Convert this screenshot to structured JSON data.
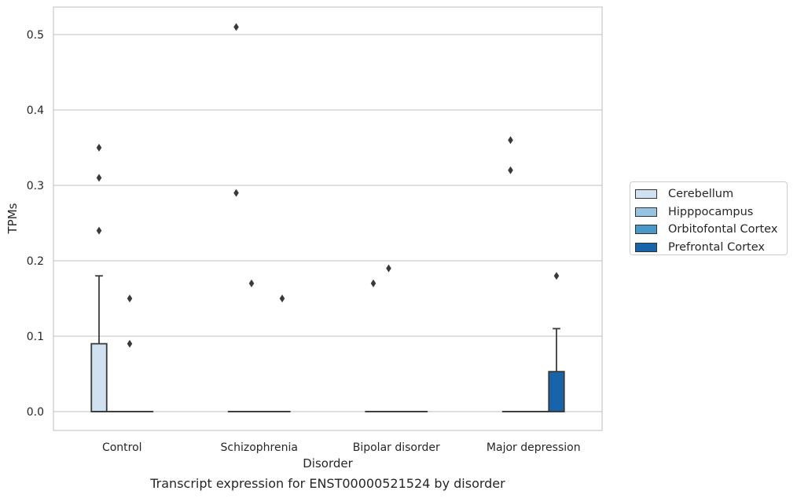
{
  "chart_data": {
    "type": "box",
    "caption": "Transcript expression for ENST00000521524 by disorder",
    "xlabel": "Disorder",
    "ylabel": "TPMs",
    "ylim": [
      -0.025,
      0.537
    ],
    "yticks": [
      0.0,
      0.1,
      0.2,
      0.3,
      0.4,
      0.5
    ],
    "ytick_labels": [
      "0.0",
      "0.1",
      "0.2",
      "0.3",
      "0.4",
      "0.5"
    ],
    "grid": "horizontal",
    "legend_position": "right",
    "categories": [
      "Control",
      "Schizophrenia",
      "Bipolar disorder",
      "Major depression"
    ],
    "series": [
      {
        "name": "Cerebellum",
        "color": "#d0e1f2",
        "boxes": [
          {
            "q1": 0.0,
            "median": 0.0,
            "q3": 0.09,
            "whislo": 0.0,
            "whishi": 0.18,
            "fliers": [
              0.24,
              0.31,
              0.35
            ]
          },
          {
            "q1": 0.0,
            "median": 0.0,
            "q3": 0.0,
            "whislo": 0.0,
            "whishi": 0.0,
            "fliers": [
              0.29,
              0.51
            ]
          },
          {
            "q1": 0.0,
            "median": 0.0,
            "q3": 0.0,
            "whislo": 0.0,
            "whishi": 0.0,
            "fliers": [
              0.17
            ]
          },
          {
            "q1": 0.0,
            "median": 0.0,
            "q3": 0.0,
            "whislo": 0.0,
            "whishi": 0.0,
            "fliers": [
              0.32,
              0.36
            ]
          }
        ]
      },
      {
        "name": "Hipppocampus",
        "color": "#94c4df",
        "boxes": [
          {
            "q1": 0.0,
            "median": 0.0,
            "q3": 0.0,
            "whislo": 0.0,
            "whishi": 0.0,
            "fliers": []
          },
          {
            "q1": 0.0,
            "median": 0.0,
            "q3": 0.0,
            "whislo": 0.0,
            "whishi": 0.0,
            "fliers": [
              0.17
            ]
          },
          {
            "q1": 0.0,
            "median": 0.0,
            "q3": 0.0,
            "whislo": 0.0,
            "whishi": 0.0,
            "fliers": [
              0.19
            ]
          },
          {
            "q1": 0.0,
            "median": 0.0,
            "q3": 0.0,
            "whislo": 0.0,
            "whishi": 0.0,
            "fliers": []
          }
        ]
      },
      {
        "name": "Orbitofontal Cortex",
        "color": "#4a98c9",
        "boxes": [
          {
            "q1": 0.0,
            "median": 0.0,
            "q3": 0.0,
            "whislo": 0.0,
            "whishi": 0.0,
            "fliers": [
              0.09,
              0.15
            ]
          },
          {
            "q1": 0.0,
            "median": 0.0,
            "q3": 0.0,
            "whislo": 0.0,
            "whishi": 0.0,
            "fliers": []
          },
          {
            "q1": 0.0,
            "median": 0.0,
            "q3": 0.0,
            "whislo": 0.0,
            "whishi": 0.0,
            "fliers": []
          },
          {
            "q1": 0.0,
            "median": 0.0,
            "q3": 0.0,
            "whislo": 0.0,
            "whishi": 0.0,
            "fliers": []
          }
        ]
      },
      {
        "name": "Prefrontal Cortex",
        "color": "#1764ab",
        "boxes": [
          {
            "q1": 0.0,
            "median": 0.0,
            "q3": 0.0,
            "whislo": 0.0,
            "whishi": 0.0,
            "fliers": []
          },
          {
            "q1": 0.0,
            "median": 0.0,
            "q3": 0.0,
            "whislo": 0.0,
            "whishi": 0.0,
            "fliers": [
              0.15
            ]
          },
          {
            "q1": 0.0,
            "median": 0.0,
            "q3": 0.0,
            "whislo": 0.0,
            "whishi": 0.0,
            "fliers": []
          },
          {
            "q1": 0.0,
            "median": 0.0,
            "q3": 0.053,
            "whislo": 0.0,
            "whishi": 0.11,
            "fliers": [
              0.18
            ]
          }
        ]
      }
    ]
  }
}
